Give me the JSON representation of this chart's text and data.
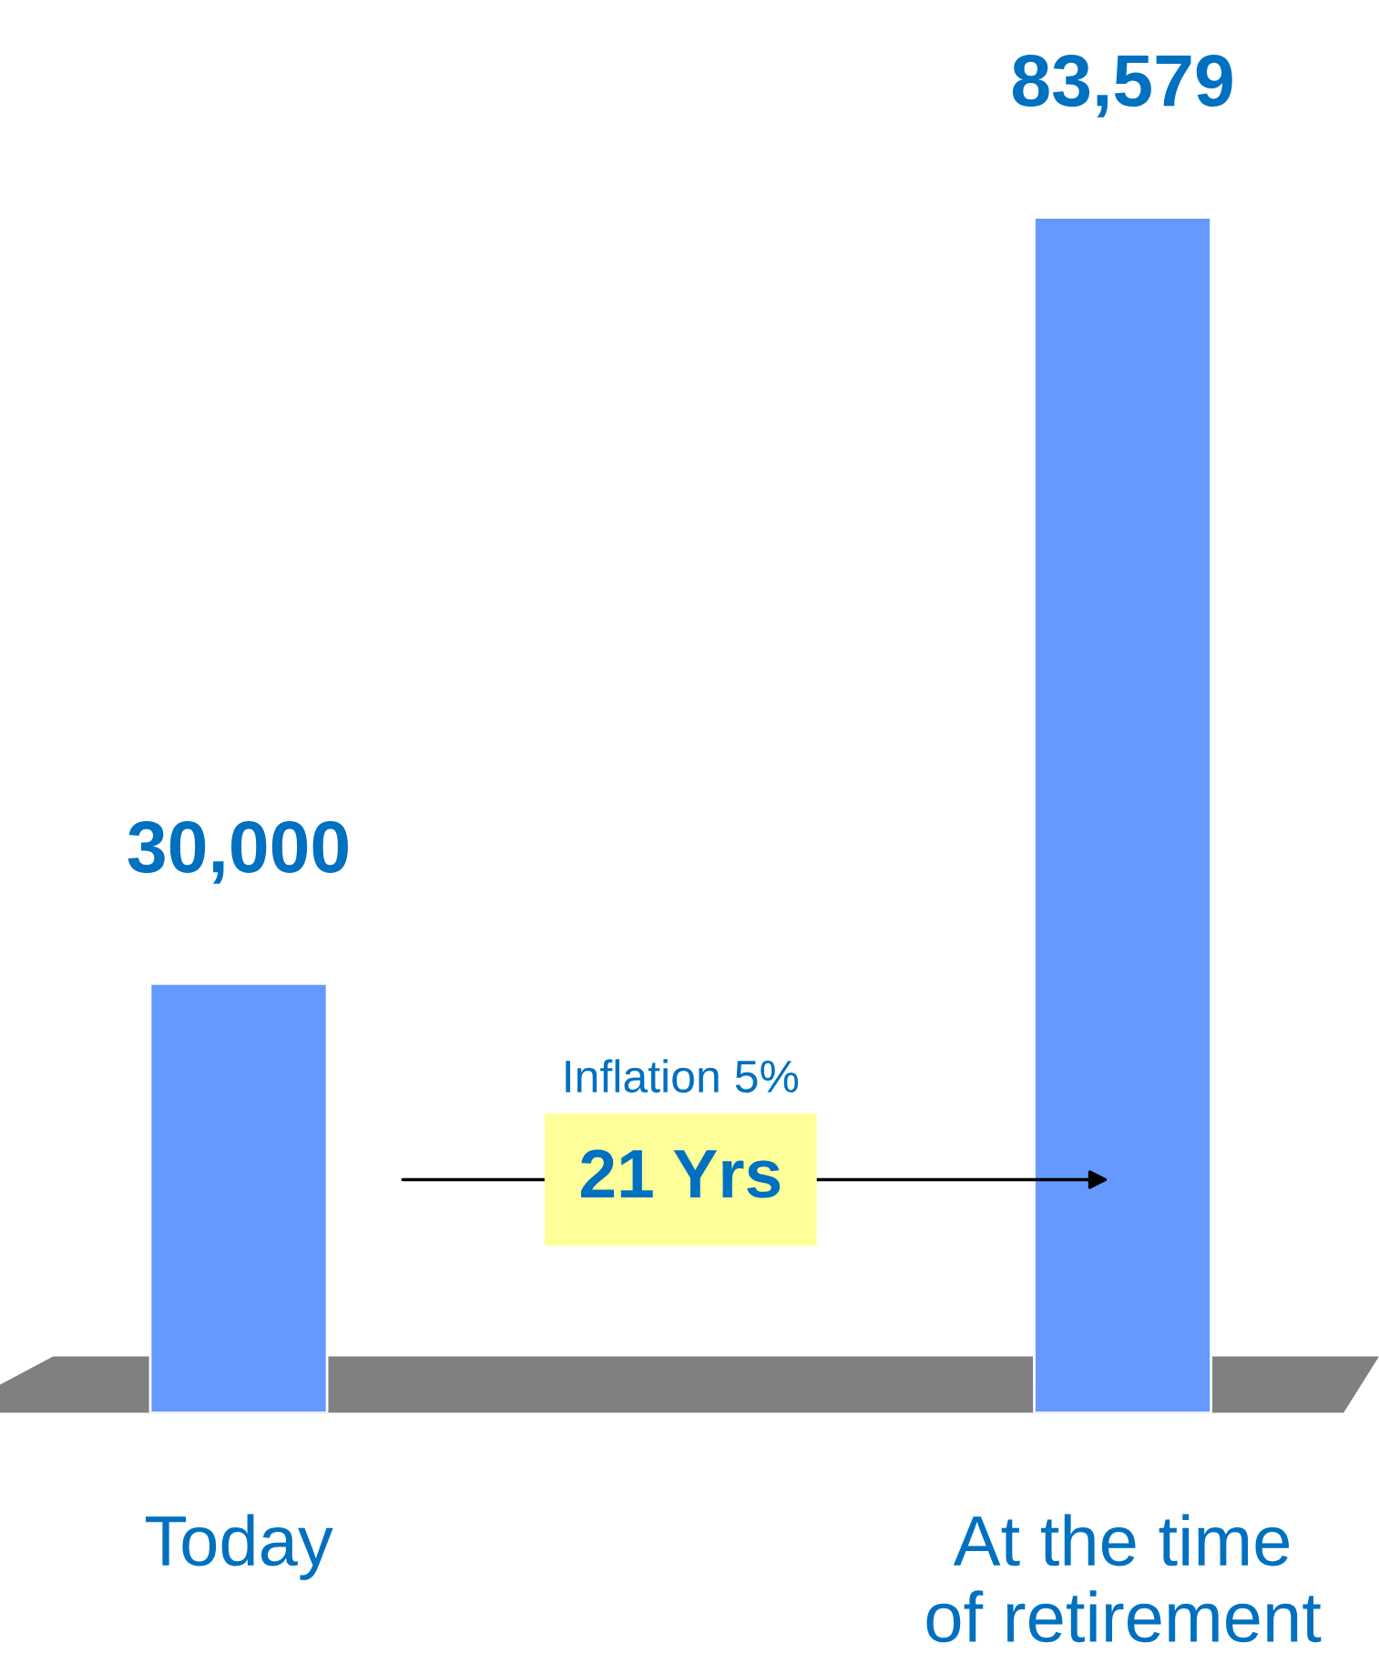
{
  "chart_data": {
    "type": "bar",
    "categories": [
      "Today",
      "At the time\nof retirement"
    ],
    "values": [
      30000,
      83579
    ],
    "value_labels": [
      "30,000",
      "83,579"
    ],
    "color": "#6699ff",
    "annotations": [
      "Inflation 5%",
      "21 Yrs"
    ]
  }
}
